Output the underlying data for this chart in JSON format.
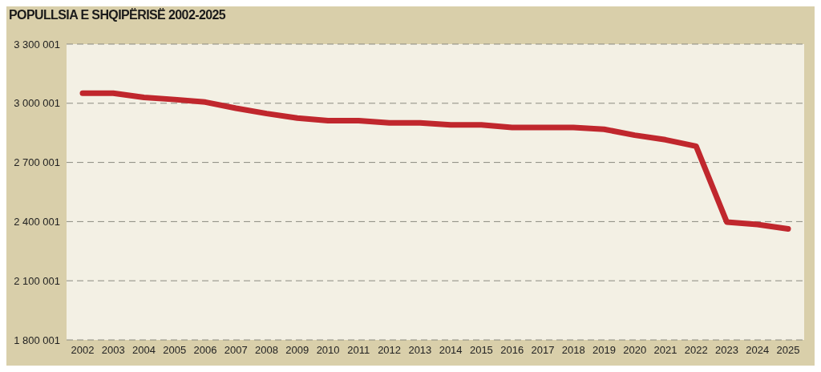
{
  "chart_data": {
    "type": "line",
    "title": "POPULLSIA E SHQIPËRISË 2002-2025",
    "categories": [
      "2002",
      "2003",
      "2004",
      "2005",
      "2006",
      "2007",
      "2008",
      "2009",
      "2010",
      "2011",
      "2012",
      "2013",
      "2014",
      "2015",
      "2016",
      "2017",
      "2018",
      "2019",
      "2020",
      "2021",
      "2022",
      "2023",
      "2024",
      "2025"
    ],
    "series": [
      {
        "color": "#c0272d",
        "values": [
          3051000,
          3051000,
          3030000,
          3019000,
          3006000,
          2975000,
          2948000,
          2925000,
          2912000,
          2912000,
          2901000,
          2901000,
          2890000,
          2890000,
          2877000,
          2877000,
          2877000,
          2868000,
          2838000,
          2815000,
          2782000,
          2398000,
          2385000,
          2363000
        ]
      }
    ],
    "ylim": [
      1800001,
      3300001
    ],
    "yticks": [
      {
        "value": 1800001,
        "label": "1 800 001"
      },
      {
        "value": 2100001,
        "label": "2 100 001"
      },
      {
        "value": 2400001,
        "label": "2 400 001"
      },
      {
        "value": 2700001,
        "label": "2 700 001"
      },
      {
        "value": 3000001,
        "label": "3 000 001"
      },
      {
        "value": 3300001,
        "label": "3 300 001"
      }
    ],
    "grid": "y",
    "marker": "none",
    "line_style": "solid",
    "legend": false
  }
}
